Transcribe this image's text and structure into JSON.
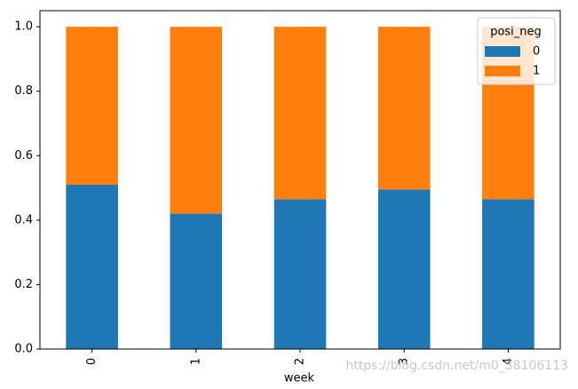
{
  "chart_data": {
    "type": "stacked_bar",
    "x_label": "week",
    "categories": [
      "0",
      "1",
      "2",
      "3",
      "4"
    ],
    "series": [
      {
        "name": "0",
        "color": "#1f77b4",
        "values": [
          0.51,
          0.42,
          0.465,
          0.495,
          0.465
        ]
      },
      {
        "name": "1",
        "color": "#ff7f0e",
        "values": [
          0.49,
          0.58,
          0.535,
          0.505,
          0.535
        ]
      }
    ],
    "legend_title": "posi_neg",
    "legend_position": "upper right",
    "ylim": [
      0,
      1.05
    ],
    "yticks": [
      {
        "value": 0,
        "label": "0.0"
      },
      {
        "value": 0.2,
        "label": "0.2"
      },
      {
        "value": 0.4,
        "label": "0.4"
      },
      {
        "value": 0.6,
        "label": "0.6"
      },
      {
        "value": 0.8,
        "label": "0.8"
      },
      {
        "value": 1,
        "label": "1.0"
      }
    ],
    "watermark": "https://blog.csdn.net/m0_38106113"
  }
}
